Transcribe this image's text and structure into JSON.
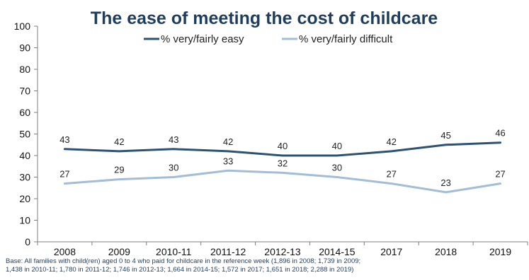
{
  "chart_data": {
    "type": "line",
    "title": "The ease of meeting the cost of childcare",
    "categories": [
      "2008",
      "2009",
      "2010-11",
      "2011-12",
      "2012-13",
      "2014-15",
      "2017",
      "2018",
      "2019"
    ],
    "ylim": [
      0,
      100
    ],
    "yticks": [
      0,
      10,
      20,
      30,
      40,
      50,
      60,
      70,
      80,
      90,
      100
    ],
    "grid": false,
    "legend_position": "top-center",
    "series": [
      {
        "name": "% very/fairly easy",
        "color": "#2e5272",
        "values": [
          43,
          42,
          43,
          42,
          40,
          40,
          42,
          45,
          46
        ]
      },
      {
        "name": "% very/fairly difficult",
        "color": "#a3bcd8",
        "values": [
          27,
          29,
          30,
          33,
          32,
          30,
          27,
          23,
          27
        ]
      }
    ]
  },
  "note": {
    "line1": "Base: All families with child(ren) aged 0 to 4 who paid for childcare in the reference week (1,896 in 2008; 1,739 in 2009;",
    "line2": "1,438 in 2010-11; 1,780 in 2011-12; 1,746 in 2012-13; 1,664 in 2014-15; 1,572 in 2017; 1,651 in 2018; 2,288 in 2019)"
  }
}
